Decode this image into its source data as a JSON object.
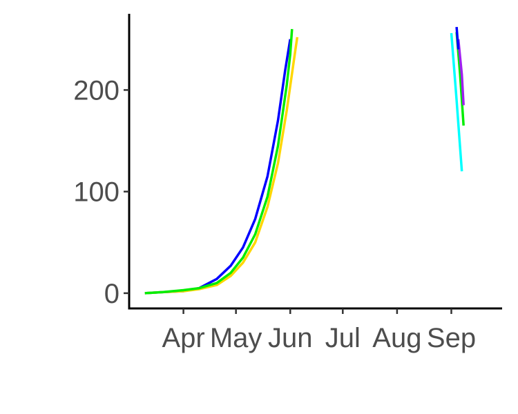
{
  "chart_data": {
    "type": "line",
    "title": "",
    "xlabel": "",
    "ylabel": "",
    "x_axis": {
      "type": "date",
      "range": [
        "2020-03-01",
        "2020-09-30"
      ],
      "ticks": [
        {
          "date": "2020-04-01",
          "label": "Apr"
        },
        {
          "date": "2020-05-01",
          "label": "May"
        },
        {
          "date": "2020-06-01",
          "label": "Jun"
        },
        {
          "date": "2020-07-01",
          "label": "Jul"
        },
        {
          "date": "2020-08-01",
          "label": "Aug"
        },
        {
          "date": "2020-09-01",
          "label": "Sep"
        }
      ]
    },
    "y_axis": {
      "range": [
        -15,
        275
      ],
      "ticks": [
        {
          "value": 0,
          "label": "0"
        },
        {
          "value": 100,
          "label": "100"
        },
        {
          "value": 200,
          "label": "200"
        }
      ]
    },
    "grid": false,
    "legend": "none",
    "series": [
      {
        "color": "#0000ff",
        "segments": [
          [
            [
              "2020-03-10",
              0
            ],
            [
              "2020-03-20",
              1
            ],
            [
              "2020-04-01",
              2
            ],
            [
              "2020-04-10",
              5
            ],
            [
              "2020-04-20",
              14
            ],
            [
              "2020-04-28",
              27
            ],
            [
              "2020-05-05",
              45
            ],
            [
              "2020-05-12",
              73
            ],
            [
              "2020-05-19",
              115
            ],
            [
              "2020-05-25",
              170
            ],
            [
              "2020-05-29",
              218
            ],
            [
              "2020-06-01",
              250
            ]
          ]
        ]
      },
      {
        "color": "#ffd700",
        "segments": [
          [
            [
              "2020-03-10",
              0
            ],
            [
              "2020-03-20",
              1
            ],
            [
              "2020-04-01",
              2
            ],
            [
              "2020-04-10",
              4
            ],
            [
              "2020-04-20",
              8
            ],
            [
              "2020-04-28",
              17
            ],
            [
              "2020-05-05",
              30
            ],
            [
              "2020-05-12",
              50
            ],
            [
              "2020-05-19",
              85
            ],
            [
              "2020-05-25",
              128
            ],
            [
              "2020-05-30",
              180
            ],
            [
              "2020-06-04",
              240
            ],
            [
              "2020-06-05",
              252
            ]
          ]
        ]
      },
      {
        "color": "#00ee00",
        "segments": [
          [
            [
              "2020-03-10",
              0
            ],
            [
              "2020-03-20",
              1
            ],
            [
              "2020-04-01",
              3
            ],
            [
              "2020-04-10",
              5
            ],
            [
              "2020-04-20",
              10
            ],
            [
              "2020-04-28",
              20
            ],
            [
              "2020-05-05",
              35
            ],
            [
              "2020-05-12",
              58
            ],
            [
              "2020-05-19",
              95
            ],
            [
              "2020-05-25",
              145
            ],
            [
              "2020-05-30",
              205
            ],
            [
              "2020-06-01",
              235
            ],
            [
              "2020-06-02",
              260
            ]
          ],
          [
            [
              "2020-09-04",
              257
            ],
            [
              "2020-09-06",
              215
            ],
            [
              "2020-09-08",
              165
            ]
          ]
        ]
      },
      {
        "color": "#00ffff",
        "segments": [
          [
            [
              "2020-09-01",
              256
            ],
            [
              "2020-09-04",
              190
            ],
            [
              "2020-09-07",
              120
            ]
          ]
        ]
      },
      {
        "color": "#a020f0",
        "segments": [
          [
            [
              "2020-09-05",
              250
            ],
            [
              "2020-09-07",
              215
            ],
            [
              "2020-09-08",
              185
            ]
          ]
        ]
      },
      {
        "color": "#0000ff",
        "segments": [
          [
            [
              "2020-09-04",
              262
            ],
            [
              "2020-09-05",
              240
            ]
          ]
        ]
      }
    ]
  }
}
